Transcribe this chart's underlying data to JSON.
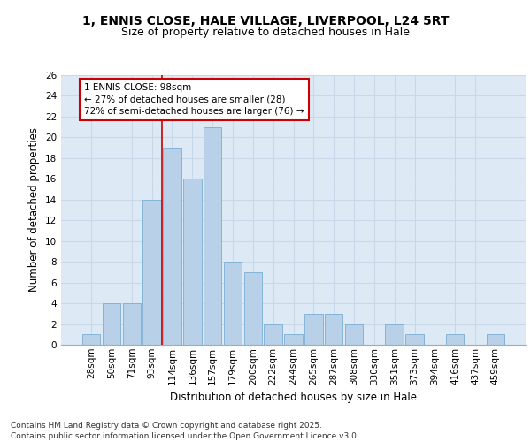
{
  "title_line1": "1, ENNIS CLOSE, HALE VILLAGE, LIVERPOOL, L24 5RT",
  "title_line2": "Size of property relative to detached houses in Hale",
  "xlabel": "Distribution of detached houses by size in Hale",
  "ylabel": "Number of detached properties",
  "categories": [
    "28sqm",
    "50sqm",
    "71sqm",
    "93sqm",
    "114sqm",
    "136sqm",
    "157sqm",
    "179sqm",
    "200sqm",
    "222sqm",
    "244sqm",
    "265sqm",
    "287sqm",
    "308sqm",
    "330sqm",
    "351sqm",
    "373sqm",
    "394sqm",
    "416sqm",
    "437sqm",
    "459sqm"
  ],
  "values": [
    1,
    4,
    4,
    14,
    19,
    16,
    21,
    8,
    7,
    2,
    1,
    3,
    3,
    2,
    0,
    2,
    1,
    0,
    1,
    0,
    1
  ],
  "bar_color": "#b8d0e8",
  "bar_edge_color": "#7aaed4",
  "grid_color": "#c8d8e8",
  "background_color": "#ddeaf5",
  "vline_color": "#cc0000",
  "annotation_text": "1 ENNIS CLOSE: 98sqm\n← 27% of detached houses are smaller (28)\n72% of semi-detached houses are larger (76) →",
  "annotation_box_facecolor": "#ffffff",
  "annotation_border_color": "#cc0000",
  "ylim": [
    0,
    26
  ],
  "yticks": [
    0,
    2,
    4,
    6,
    8,
    10,
    12,
    14,
    16,
    18,
    20,
    22,
    24,
    26
  ],
  "footer_text": "Contains HM Land Registry data © Crown copyright and database right 2025.\nContains public sector information licensed under the Open Government Licence v3.0.",
  "title_fontsize": 10,
  "subtitle_fontsize": 9,
  "axis_label_fontsize": 8.5,
  "tick_fontsize": 7.5,
  "annotation_fontsize": 7.5,
  "footer_fontsize": 6.5
}
